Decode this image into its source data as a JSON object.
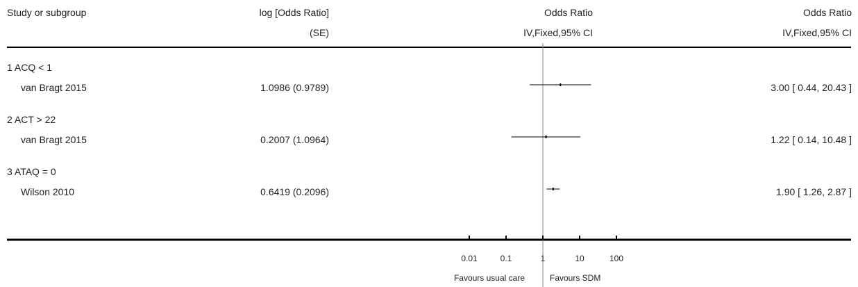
{
  "header": {
    "col_study": "Study or subgroup",
    "col_logor_line1": "log [Odds Ratio]",
    "col_logor_line2": "(SE)",
    "col_plot_line1": "Odds Ratio",
    "col_plot_line2": "IV,Fixed,95% CI",
    "col_ci_line1": "Odds Ratio",
    "col_ci_line2": "IV,Fixed,95% CI"
  },
  "groups": [
    {
      "label": "1 ACQ < 1",
      "study": "van Bragt 2015",
      "log_or_se": "1.0986 (0.9789)",
      "ci_text": "3.00 [ 0.44, 20.43 ]"
    },
    {
      "label": "2 ACT > 22",
      "study": "van Bragt 2015",
      "log_or_se": "0.2007 (1.0964)",
      "ci_text": "1.22 [ 0.14, 10.48 ]"
    },
    {
      "label": "3 ATAQ = 0",
      "study": "Wilson 2010",
      "log_or_se": "0.6419 (0.2096)",
      "ci_text": "1.90 [ 1.26, 2.87 ]"
    }
  ],
  "footer": {
    "favours_left": "Favours usual care",
    "favours_right": "Favours SDM"
  },
  "chart_data": {
    "type": "forest",
    "x_scale": "log",
    "xlim": [
      0.01,
      100
    ],
    "null_value": 1,
    "ticks": [
      {
        "value": 0.01,
        "label": "0.01"
      },
      {
        "value": 0.1,
        "label": "0.1"
      },
      {
        "value": 1,
        "label": "1"
      },
      {
        "value": 10,
        "label": "10"
      },
      {
        "value": 100,
        "label": "100"
      }
    ],
    "studies": [
      {
        "label": "van Bragt 2015",
        "or": 3.0,
        "lo": 0.44,
        "hi": 20.43
      },
      {
        "label": "van Bragt 2015",
        "or": 1.22,
        "lo": 0.14,
        "hi": 10.48
      },
      {
        "label": "Wilson 2010",
        "or": 1.9,
        "lo": 1.26,
        "hi": 2.87
      }
    ]
  }
}
